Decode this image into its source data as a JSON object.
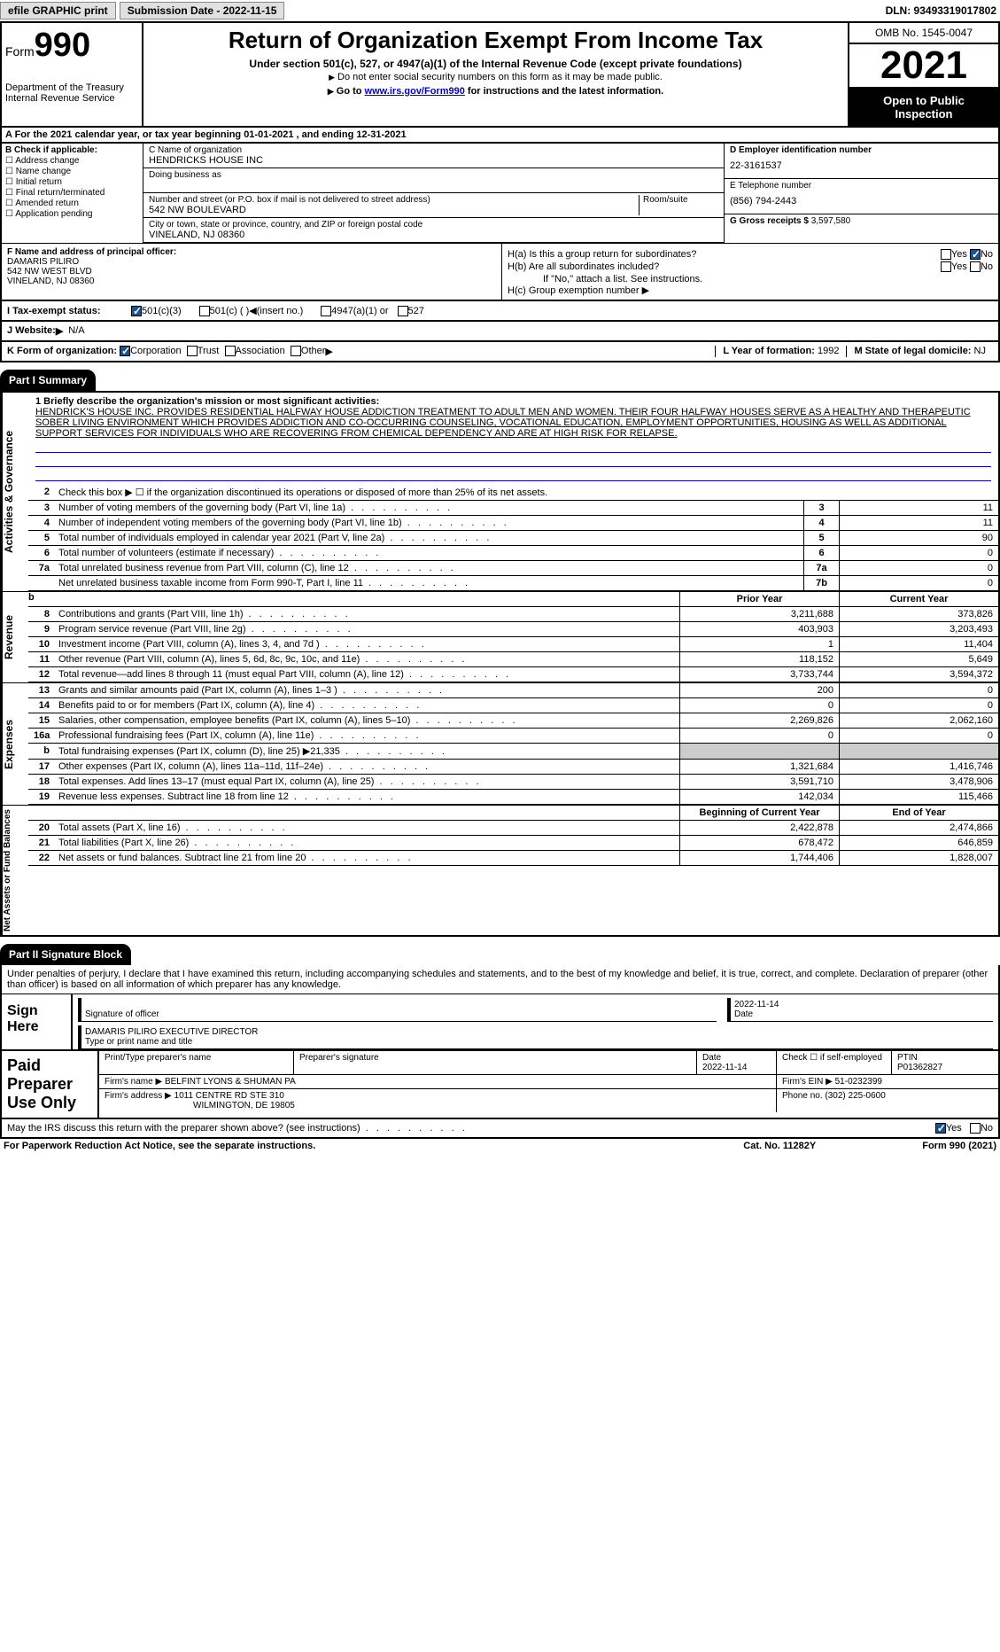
{
  "topbar": {
    "efile": "efile GRAPHIC print",
    "submission_label": "Submission Date - 2022-11-15",
    "dln_label": "DLN: 93493319017802"
  },
  "header": {
    "form_word": "Form",
    "form_no": "990",
    "dept": "Department of the Treasury",
    "irs": "Internal Revenue Service",
    "title": "Return of Organization Exempt From Income Tax",
    "sub1": "Under section 501(c), 527, or 4947(a)(1) of the Internal Revenue Code (except private foundations)",
    "sub2": "Do not enter social security numbers on this form as it may be made public.",
    "sub3_pre": "Go to ",
    "sub3_link": "www.irs.gov/Form990",
    "sub3_post": " for instructions and the latest information.",
    "omb": "OMB No. 1545-0047",
    "year": "2021",
    "open": "Open to Public Inspection"
  },
  "row_a": "A For the 2021 calendar year, or tax year beginning 01-01-2021    , and ending 12-31-2021",
  "box_b": {
    "hdr": "B Check if applicable:",
    "opts": [
      "Address change",
      "Name change",
      "Initial return",
      "Final return/terminated",
      "Amended return",
      "Application pending"
    ]
  },
  "box_c": {
    "name_lbl": "C Name of organization",
    "name": "HENDRICKS HOUSE INC",
    "dba_lbl": "Doing business as",
    "street_lbl": "Number and street (or P.O. box if mail is not delivered to street address)",
    "room_lbl": "Room/suite",
    "street": "542 NW BOULEVARD",
    "city_lbl": "City or town, state or province, country, and ZIP or foreign postal code",
    "city": "VINELAND, NJ  08360"
  },
  "box_d": {
    "lbl": "D Employer identification number",
    "val": "22-3161537"
  },
  "box_e": {
    "lbl": "E Telephone number",
    "val": "(856) 794-2443"
  },
  "box_g": {
    "lbl": "G Gross receipts $",
    "val": "3,597,580"
  },
  "box_f": {
    "lbl": "F  Name and address of principal officer:",
    "name": "DAMARIS PILIRO",
    "addr1": "542 NW WEST BLVD",
    "addr2": "VINELAND, NJ  08360"
  },
  "box_h": {
    "a_lbl": "H(a)  Is this a group return for subordinates?",
    "b_lbl": "H(b)  Are all subordinates included?",
    "b_note": "If \"No,\" attach a list. See instructions.",
    "c_lbl": "H(c)  Group exemption number",
    "yes": "Yes",
    "no": "No"
  },
  "row_i": {
    "lbl": "I  Tax-exempt status:",
    "o1": "501(c)(3)",
    "o2": "501(c) (  )",
    "o2b": "(insert no.)",
    "o3": "4947(a)(1) or",
    "o4": "527"
  },
  "row_j": {
    "lbl": "J  Website:",
    "val": "N/A"
  },
  "row_k": {
    "lbl": "K Form of organization:",
    "o1": "Corporation",
    "o2": "Trust",
    "o3": "Association",
    "o4": "Other",
    "l_lbl": "L Year of formation:",
    "l_val": "1992",
    "m_lbl": "M State of legal domicile:",
    "m_val": "NJ"
  },
  "part1": {
    "hdr": "Part I      Summary",
    "side_ag": "Activities & Governance",
    "side_rev": "Revenue",
    "side_exp": "Expenses",
    "side_net": "Net Assets or Fund Balances",
    "l1_lbl": "1  Briefly describe the organization's mission or most significant activities:",
    "l1_text": "HENDRICK'S HOUSE INC. PROVIDES RESIDENTIAL HALFWAY HOUSE ADDICTION TREATMENT TO ADULT MEN AND WOMEN. THEIR FOUR HALFWAY HOUSES SERVE AS A HEALTHY AND THERAPEUTIC SOBER LIVING ENVIRONMENT WHICH PROVIDES ADDICTION AND CO-OCCURRING COUNSELING, VOCATIONAL EDUCATION, EMPLOYMENT OPPORTUNITIES, HOUSING AS WELL AS ADDITIONAL SUPPORT SERVICES FOR INDIVIDUALS WHO ARE RECOVERING FROM CHEMICAL DEPENDENCY AND ARE AT HIGH RISK FOR RELAPSE.",
    "l2": "Check this box ▶ ☐  if the organization discontinued its operations or disposed of more than 25% of its net assets.",
    "lines_ag": [
      {
        "n": "3",
        "t": "Number of voting members of the governing body (Part VI, line 1a)",
        "b": "3",
        "v": "11"
      },
      {
        "n": "4",
        "t": "Number of independent voting members of the governing body (Part VI, line 1b)",
        "b": "4",
        "v": "11"
      },
      {
        "n": "5",
        "t": "Total number of individuals employed in calendar year 2021 (Part V, line 2a)",
        "b": "5",
        "v": "90"
      },
      {
        "n": "6",
        "t": "Total number of volunteers (estimate if necessary)",
        "b": "6",
        "v": "0"
      },
      {
        "n": "7a",
        "t": "Total unrelated business revenue from Part VIII, column (C), line 12",
        "b": "7a",
        "v": "0"
      },
      {
        "n": "",
        "t": "Net unrelated business taxable income from Form 990-T, Part I, line 11",
        "b": "7b",
        "v": "0"
      }
    ],
    "col_hdr_b": "b",
    "col_prior": "Prior Year",
    "col_curr": "Current Year",
    "lines_rev": [
      {
        "n": "8",
        "t": "Contributions and grants (Part VIII, line 1h)",
        "p": "3,211,688",
        "c": "373,826"
      },
      {
        "n": "9",
        "t": "Program service revenue (Part VIII, line 2g)",
        "p": "403,903",
        "c": "3,203,493"
      },
      {
        "n": "10",
        "t": "Investment income (Part VIII, column (A), lines 3, 4, and 7d )",
        "p": "1",
        "c": "11,404"
      },
      {
        "n": "11",
        "t": "Other revenue (Part VIII, column (A), lines 5, 6d, 8c, 9c, 10c, and 11e)",
        "p": "118,152",
        "c": "5,649"
      },
      {
        "n": "12",
        "t": "Total revenue—add lines 8 through 11 (must equal Part VIII, column (A), line 12)",
        "p": "3,733,744",
        "c": "3,594,372"
      }
    ],
    "lines_exp": [
      {
        "n": "13",
        "t": "Grants and similar amounts paid (Part IX, column (A), lines 1–3 )",
        "p": "200",
        "c": "0"
      },
      {
        "n": "14",
        "t": "Benefits paid to or for members (Part IX, column (A), line 4)",
        "p": "0",
        "c": "0"
      },
      {
        "n": "15",
        "t": "Salaries, other compensation, employee benefits (Part IX, column (A), lines 5–10)",
        "p": "2,269,826",
        "c": "2,062,160"
      },
      {
        "n": "16a",
        "t": "Professional fundraising fees (Part IX, column (A), line 11e)",
        "p": "0",
        "c": "0"
      },
      {
        "n": "b",
        "t": "Total fundraising expenses (Part IX, column (D), line 25) ▶21,335",
        "p": "",
        "c": "",
        "shade": true
      },
      {
        "n": "17",
        "t": "Other expenses (Part IX, column (A), lines 11a–11d, 11f–24e)",
        "p": "1,321,684",
        "c": "1,416,746"
      },
      {
        "n": "18",
        "t": "Total expenses. Add lines 13–17 (must equal Part IX, column (A), line 25)",
        "p": "3,591,710",
        "c": "3,478,906"
      },
      {
        "n": "19",
        "t": "Revenue less expenses. Subtract line 18 from line 12",
        "p": "142,034",
        "c": "115,466"
      }
    ],
    "col_beg": "Beginning of Current Year",
    "col_end": "End of Year",
    "lines_net": [
      {
        "n": "20",
        "t": "Total assets (Part X, line 16)",
        "p": "2,422,878",
        "c": "2,474,866"
      },
      {
        "n": "21",
        "t": "Total liabilities (Part X, line 26)",
        "p": "678,472",
        "c": "646,859"
      },
      {
        "n": "22",
        "t": "Net assets or fund balances. Subtract line 21 from line 20",
        "p": "1,744,406",
        "c": "1,828,007"
      }
    ]
  },
  "part2": {
    "hdr": "Part II      Signature Block",
    "decl": "Under penalties of perjury, I declare that I have examined this return, including accompanying schedules and statements, and to the best of my knowledge and belief, it is true, correct, and complete. Declaration of preparer (other than officer) is based on all information of which preparer has any knowledge.",
    "sign_here": "Sign Here",
    "sig_officer_lbl": "Signature of officer",
    "sig_date": "2022-11-14",
    "date_lbl": "Date",
    "name_title": "DAMARIS PILIRO  EXECUTIVE DIRECTOR",
    "name_title_lbl": "Type or print name and title",
    "paid": "Paid Preparer Use Only",
    "p_name_lbl": "Print/Type preparer's name",
    "p_sig_lbl": "Preparer's signature",
    "p_date_lbl": "Date",
    "p_date": "2022-11-14",
    "p_check_lbl": "Check ☐ if self-employed",
    "ptin_lbl": "PTIN",
    "ptin": "P01362827",
    "firm_name_lbl": "Firm's name    ▶",
    "firm_name": "BELFINT LYONS & SHUMAN PA",
    "firm_ein_lbl": "Firm's EIN ▶",
    "firm_ein": "51-0232399",
    "firm_addr_lbl": "Firm's address ▶",
    "firm_addr1": "1011 CENTRE RD STE 310",
    "firm_addr2": "WILMINGTON, DE  19805",
    "phone_lbl": "Phone no.",
    "phone": "(302) 225-0600"
  },
  "footer_q": {
    "txt": "May the IRS discuss this return with the preparer shown above? (see instructions)",
    "yes": "Yes",
    "no": "No"
  },
  "bottom": {
    "l": "For Paperwork Reduction Act Notice, see the separate instructions.",
    "m": "Cat. No. 11282Y",
    "r": "Form 990 (2021)"
  }
}
